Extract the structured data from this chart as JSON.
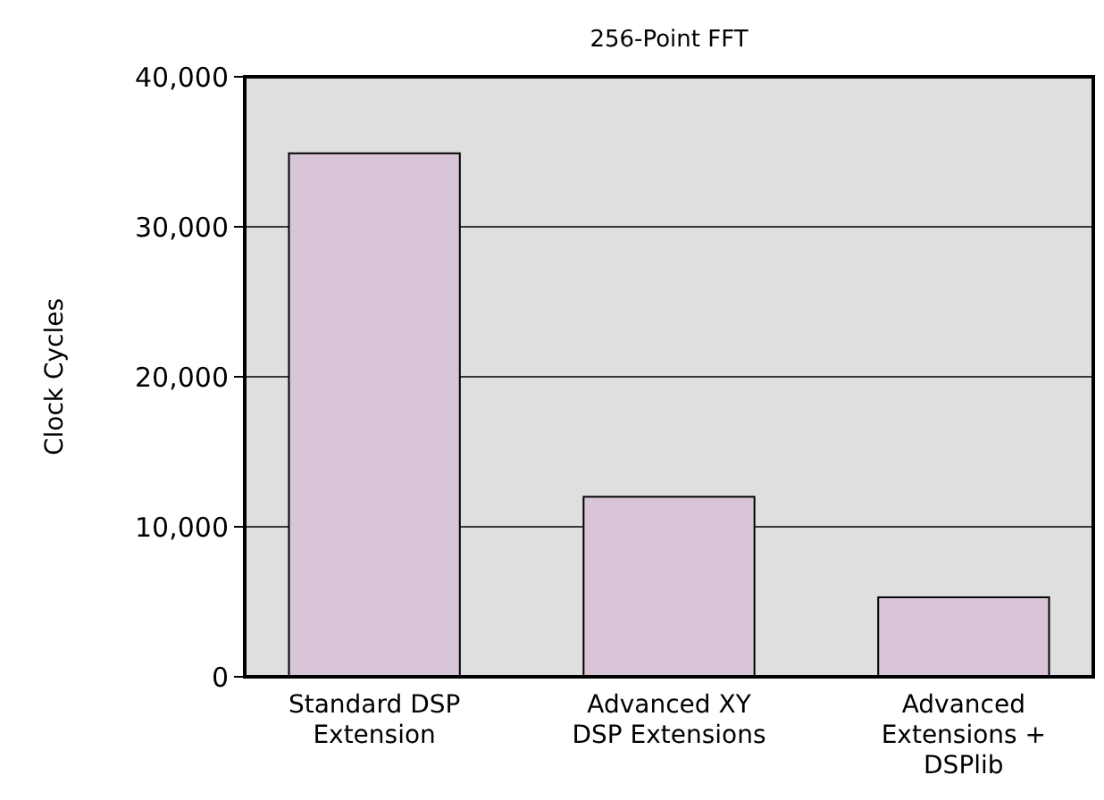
{
  "chart_data": {
    "type": "bar",
    "title": "256-Point FFT",
    "ylabel": "Clock Cycles",
    "categories": [
      "Standard DSP Extension",
      "Advanced XY DSP Extensions",
      "Advanced Extensions + DSPlib"
    ],
    "values": [
      34900,
      12000,
      5300
    ],
    "color": "#d9c5d8",
    "ylim": [
      0,
      40000
    ],
    "yticks": [
      {
        "value": 0,
        "label": "0"
      },
      {
        "value": 10000,
        "label": "10,000"
      },
      {
        "value": 20000,
        "label": "20,000"
      },
      {
        "value": 30000,
        "label": "30,000"
      },
      {
        "value": 40000,
        "label": "40,000"
      }
    ],
    "grid": "y"
  }
}
